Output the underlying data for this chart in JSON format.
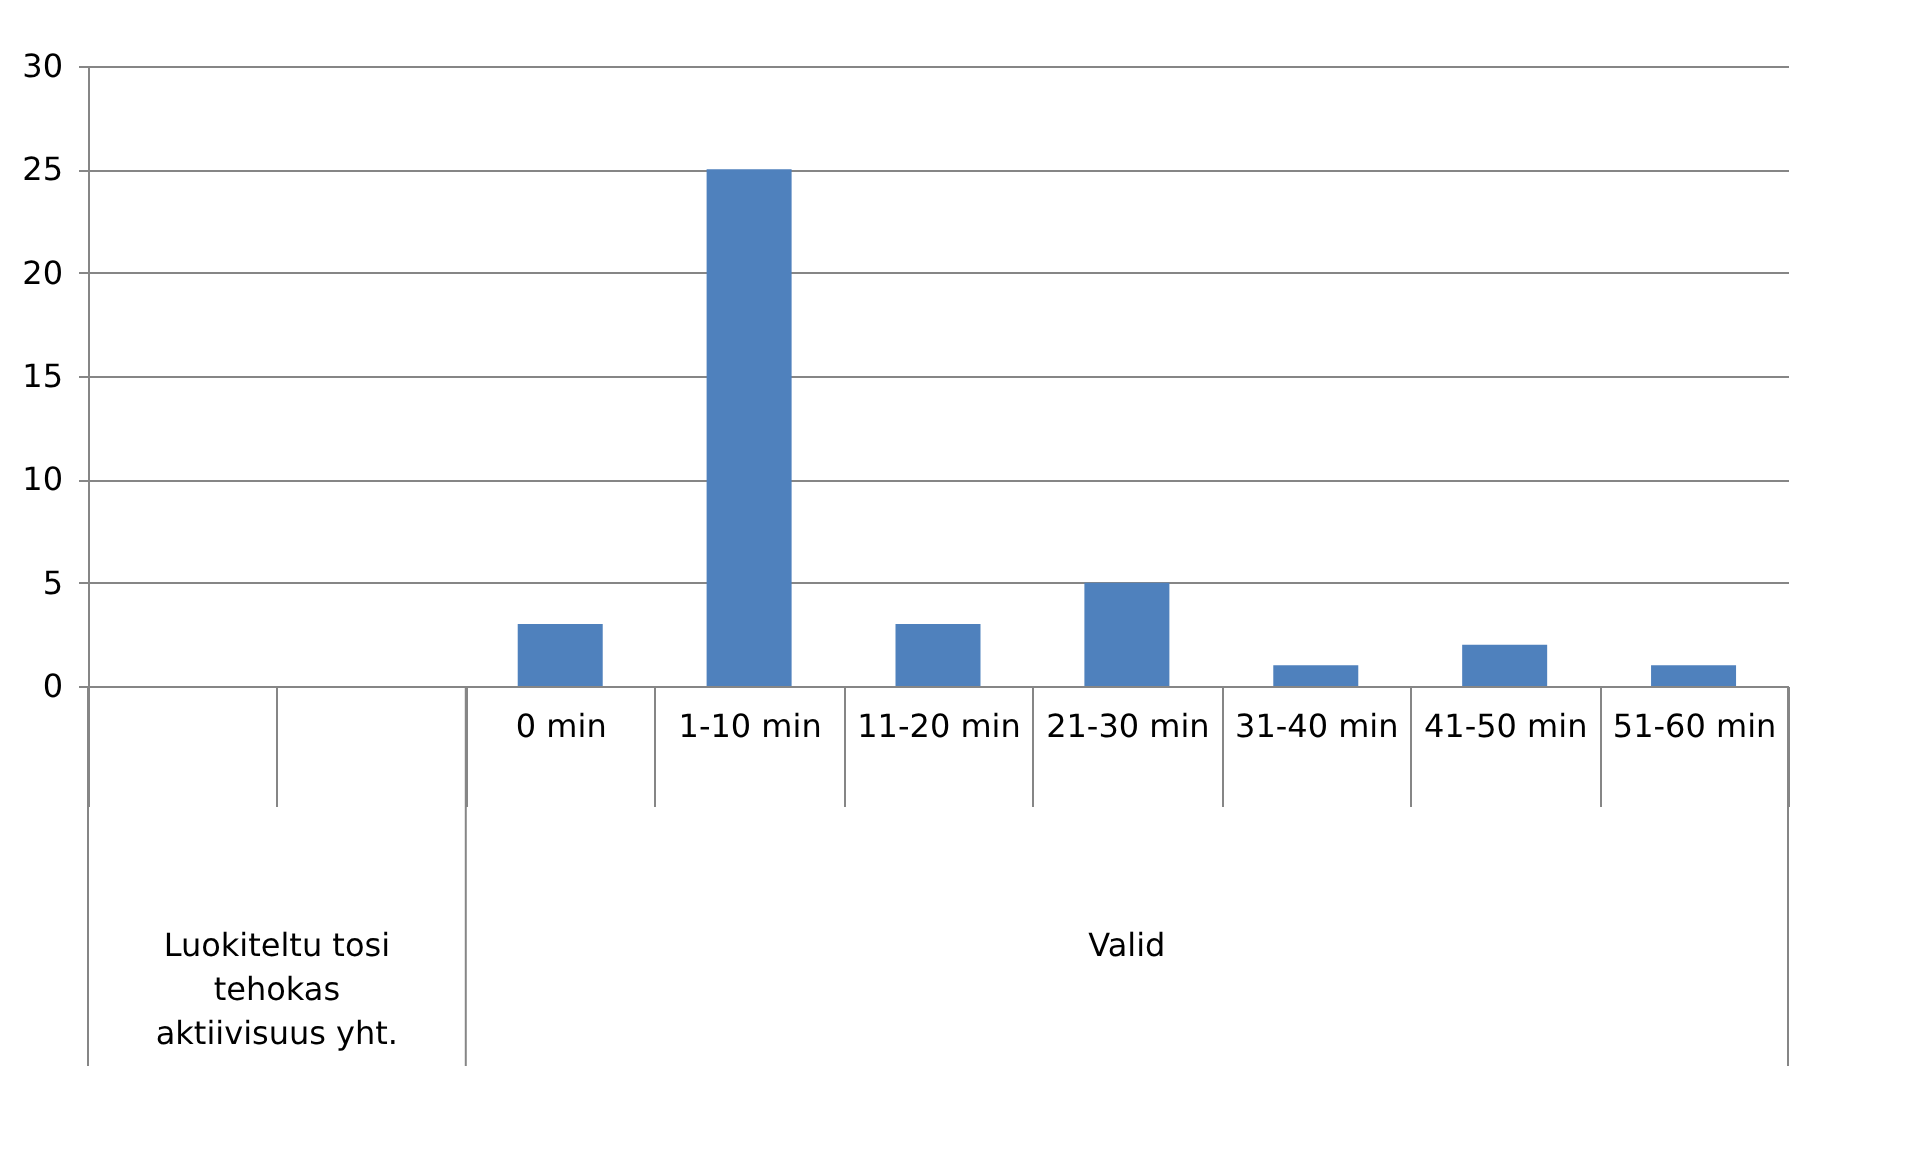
{
  "chart_data": {
    "type": "bar",
    "categories": [
      null,
      null,
      "0 min",
      "1-10 min",
      "11-20 min",
      "21-30 min",
      "31-40 min",
      "41-50 min",
      "51-60 min"
    ],
    "values": [
      null,
      null,
      3,
      25,
      3,
      5,
      1,
      2,
      1
    ],
    "color": "#4f81bd",
    "ylim": [
      0,
      30
    ],
    "yticks": [
      0,
      5,
      10,
      15,
      20,
      25,
      30
    ],
    "grid": "y",
    "annotations": [
      "Luokiteltu tosi tehokas aktiivisuus yht.",
      "Valid"
    ]
  }
}
